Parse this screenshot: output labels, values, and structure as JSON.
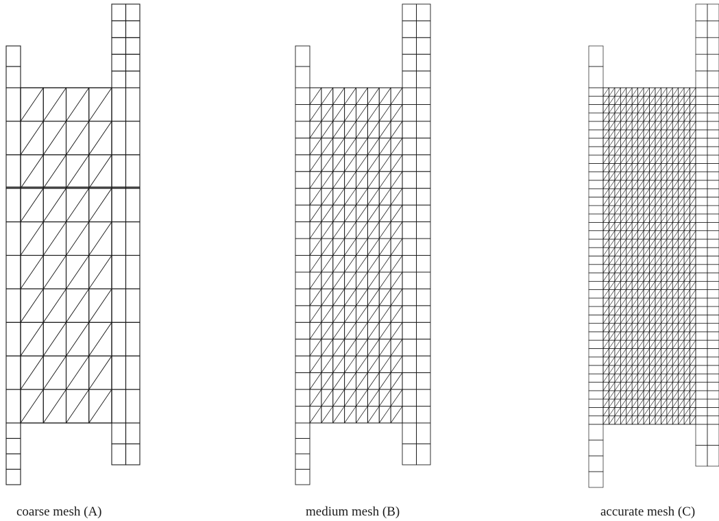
{
  "figure": {
    "panels": [
      {
        "id": "A",
        "caption": "coarse mesh (A)",
        "inner_cols": 4,
        "inner_rows": 10,
        "outer_divisions": 2
      },
      {
        "id": "B",
        "caption": "medium mesh (B)",
        "inner_cols": 8,
        "inner_rows": 20,
        "outer_divisions": 2
      },
      {
        "id": "C",
        "caption": "accurate mesh (C)",
        "inner_cols": 16,
        "inner_rows": 40,
        "outer_divisions": 2
      }
    ],
    "colors": {
      "line": "#1a1a1a",
      "background": "#ffffff"
    }
  }
}
